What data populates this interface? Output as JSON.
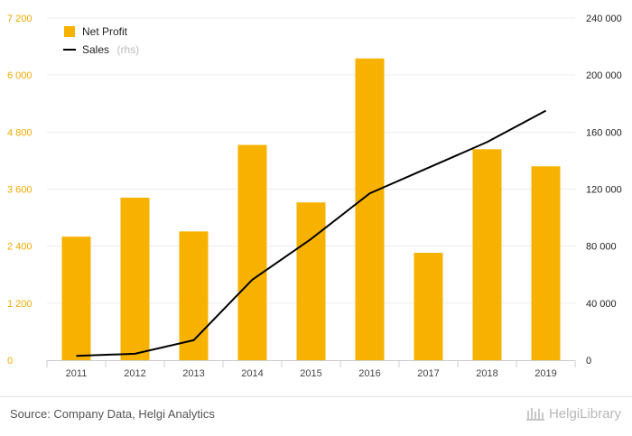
{
  "chart_data": {
    "type": "bar",
    "categories": [
      "2011",
      "2012",
      "2013",
      "2014",
      "2015",
      "2016",
      "2017",
      "2018",
      "2019"
    ],
    "series": [
      {
        "name": "Net Profit",
        "type": "bar",
        "axis": "left",
        "color": "#f7b200",
        "values": [
          2600,
          3420,
          2710,
          4530,
          3320,
          6350,
          2260,
          4440,
          4080
        ]
      },
      {
        "name": "Sales",
        "type": "line",
        "axis": "right",
        "color": "#000000",
        "values": [
          3000,
          4500,
          14000,
          56500,
          85000,
          117000,
          135000,
          153000,
          175000
        ]
      }
    ],
    "legend": [
      {
        "label": "Net Profit",
        "suffix": ""
      },
      {
        "label": "Sales",
        "suffix": "(rhs)"
      }
    ],
    "left_axis": {
      "ylim": [
        0,
        7200
      ],
      "ticks": [
        0,
        1200,
        2400,
        3600,
        4800,
        6000,
        7200
      ],
      "tick_labels": [
        "0",
        "1 200",
        "2 400",
        "3 600",
        "4 800",
        "6 000",
        "7 200"
      ]
    },
    "right_axis": {
      "ylim": [
        0,
        240000
      ],
      "ticks": [
        0,
        40000,
        80000,
        120000,
        160000,
        200000,
        240000
      ],
      "tick_labels": [
        "0",
        "40 000",
        "80 000",
        "120 000",
        "160 000",
        "200 000",
        "240 000"
      ]
    },
    "legend_position": "top-left",
    "grid": true
  },
  "footer": {
    "source": "Source: Company Data, Helgi Analytics",
    "brand": "HelgiLibrary"
  }
}
